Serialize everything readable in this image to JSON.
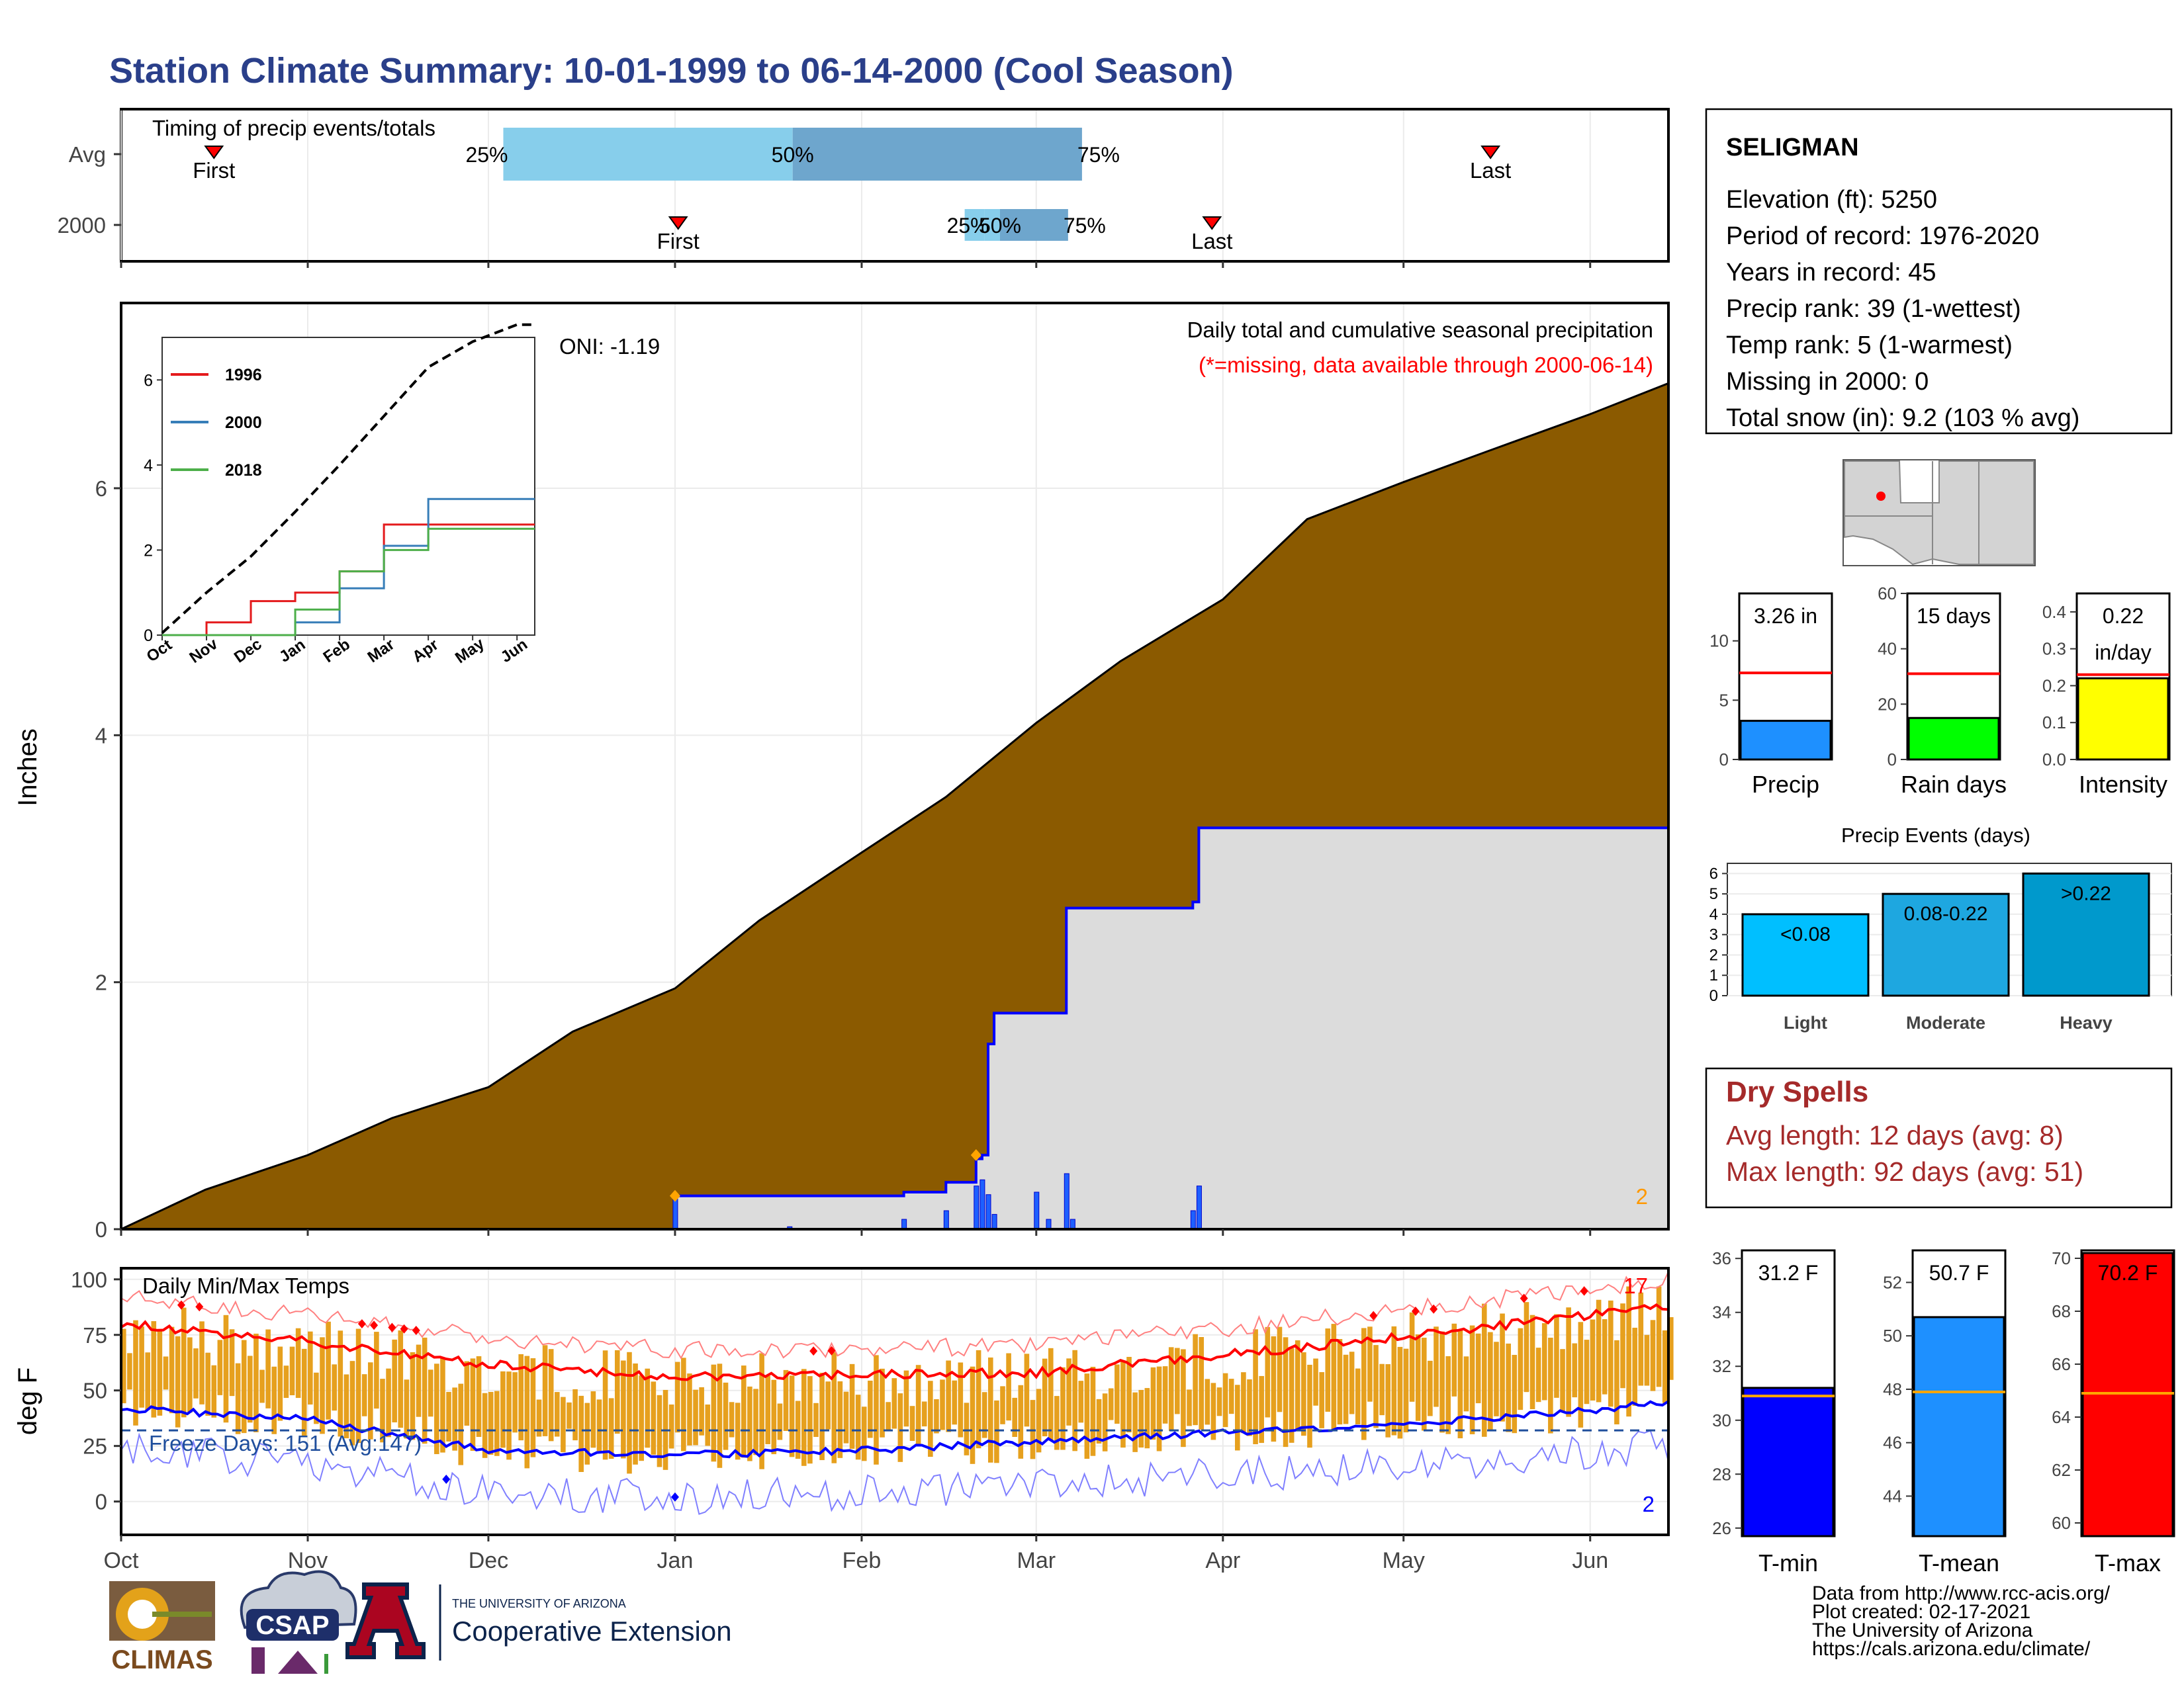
{
  "title": "Station Climate Summary: 10-01-1999 to 06-14-2000 (Cool Season)",
  "colors": {
    "title": "#2a3f8a",
    "cumulative_avg": "#8b5a00",
    "season_fill": "#dcdcdc",
    "season_line": "#0000ff",
    "band_light": "#87ceeb",
    "band_dark": "#6ea6cd",
    "tmax": "#ff0000",
    "tmin": "#0000ff",
    "bars": "#e6a01e",
    "dry_spells": "#a52a2a"
  },
  "months": [
    "Oct",
    "Nov",
    "Dec",
    "Jan",
    "Feb",
    "Mar",
    "Apr",
    "May",
    "Jun"
  ],
  "timing_panel": {
    "title": "Timing of precip events/totals",
    "rows": [
      {
        "label": "Avg",
        "first_label": "First",
        "last_label": "Last",
        "p25": "25%",
        "p50": "50%",
        "p75": "75%",
        "first": 0.06,
        "last": 0.885,
        "q25": 0.247,
        "q50": 0.434,
        "q75": 0.621
      },
      {
        "label": "2000",
        "first_label": "First",
        "last_label": "Last",
        "p25": "25%",
        "p50": "50%",
        "p75": "75%",
        "first": 0.36,
        "last": 0.705,
        "q25": 0.558,
        "q50": 0.568,
        "q75": 0.612
      }
    ]
  },
  "precip_panel": {
    "ylabel": "Inches",
    "oni": "ONI: -1.19",
    "caption": "Daily total and cumulative seasonal precipitation",
    "missing_note": "(*=missing, data available through 2000-06-14)",
    "count_label": "2",
    "yticks": [
      "0",
      "2",
      "4",
      "6"
    ]
  },
  "inset": {
    "yticks": [
      "0",
      "2",
      "4",
      "6"
    ],
    "months": [
      "Oct",
      "Nov",
      "Dec",
      "Jan",
      "Feb",
      "Mar",
      "Apr",
      "May",
      "Jun"
    ],
    "legend": [
      "1996",
      "2000",
      "2018"
    ],
    "legend_colors": [
      "#e41a1c",
      "#377eb8",
      "#4daf4a"
    ]
  },
  "temp_panel": {
    "ylabel": "deg F",
    "title": "Daily Min/Max Temps",
    "freeze": "Freeze Days: 151 (Avg:147)",
    "max_count": "17",
    "min_count": "2",
    "yticks": [
      "0",
      "25",
      "50",
      "75",
      "100"
    ]
  },
  "station_box": {
    "name": "SELIGMAN",
    "lines": [
      "Elevation (ft): 5250",
      "Period of record: 1976-2020",
      "Years in record: 45",
      "Precip rank: 39 (1-wettest)",
      "Temp rank: 5 (1-warmest)",
      "Missing in 2000: 0",
      "Total snow (in): 9.2 (103 % avg)"
    ]
  },
  "mini_bars": [
    {
      "label": "Precip",
      "value_text": "3.26 in",
      "value": 3.26,
      "avg": 7.3,
      "ymax": 14,
      "ticks": [
        "0",
        "5",
        "10"
      ],
      "tickvals": [
        0,
        5,
        10
      ],
      "color": "#1e90ff"
    },
    {
      "label": "Rain days",
      "value_text": "15 days",
      "value": 15,
      "avg": 31,
      "ymax": 60,
      "ticks": [
        "0",
        "20",
        "40",
        "60"
      ],
      "tickvals": [
        0,
        20,
        40,
        60
      ],
      "color": "#00ff00"
    },
    {
      "label": "Intensity",
      "value_text": "0.22",
      "value_text2": "in/day",
      "value": 0.22,
      "avg": 0.23,
      "ymax": 0.45,
      "ticks": [
        "0.0",
        "0.1",
        "0.2",
        "0.3",
        "0.4"
      ],
      "tickvals": [
        0,
        0.1,
        0.2,
        0.3,
        0.4
      ],
      "color": "#ffff00"
    }
  ],
  "events_panel": {
    "title": "Precip Events (days)",
    "bars": [
      {
        "label": "Light",
        "range": "<0.08",
        "value": 4,
        "color": "#00bfff"
      },
      {
        "label": "Moderate",
        "range": "0.08-0.22",
        "value": 5,
        "color": "#1ea7e0"
      },
      {
        "label": "Heavy",
        "range": ">0.22",
        "value": 6,
        "color": "#0099cc"
      }
    ],
    "ticks": [
      "0",
      "1",
      "2",
      "3",
      "4",
      "5",
      "6"
    ]
  },
  "dry_spells": {
    "title": "Dry Spells",
    "avg": "Avg length: 12 days (avg: 8)",
    "max": "Max length: 92 days (avg: 51)"
  },
  "temp_bars": [
    {
      "label": "T-min",
      "value_text": "31.2 F",
      "value": 31.2,
      "avg": 30.9,
      "ymin": 25.7,
      "ymax": 36.3,
      "ticks": [
        26,
        28,
        30,
        32,
        34,
        36
      ],
      "color": "#0000ff"
    },
    {
      "label": "T-mean",
      "value_text": "50.7 F",
      "value": 50.7,
      "avg": 47.9,
      "ymin": 42.5,
      "ymax": 53.2,
      "ticks": [
        44,
        46,
        48,
        50,
        52
      ],
      "color": "#1e90ff"
    },
    {
      "label": "T-max",
      "value_text": "70.2 F",
      "value": 70.2,
      "avg": 64.9,
      "ymin": 59.5,
      "ymax": 70.3,
      "ticks": [
        60,
        62,
        64,
        66,
        68,
        70
      ],
      "color": "#ff0000"
    }
  ],
  "footer": {
    "lines": [
      "Data from http://www.rcc-acis.org/",
      "Plot created: 02-17-2021",
      "The University of Arizona",
      "https://cals.arizona.edu/climate/"
    ],
    "climas": "CLIMAS",
    "csap": "CSAP",
    "ua_small": "THE UNIVERSITY OF ARIZONA",
    "ua_big": "Cooperative Extension"
  },
  "chart_data": [
    {
      "type": "area",
      "title": "Daily total and cumulative seasonal precipitation",
      "ylabel": "Inches",
      "ylim": [
        0,
        7.5
      ],
      "x_range": [
        "1999-10-01",
        "2000-06-14"
      ],
      "series": [
        {
          "name": "",
          "x": [
            "1999-10-01",
            "1999-10-15",
            "1999-11-01",
            "1999-11-15",
            "1999-12-01",
            "1999-12-15",
            "2000-01-01",
            "2000-01-15",
            "2000-02-01",
            "2000-02-15",
            "2000-03-01",
            "2000-03-15",
            "2000-04-01",
            "2000-04-15",
            "2000-05-01",
            "2000-05-15",
            "2000-06-01",
            "2000-06-14"
          ],
          "values": [
            0.0,
            0.32,
            0.6,
            0.9,
            1.15,
            1.6,
            1.95,
            2.5,
            3.05,
            3.5,
            4.1,
            4.6,
            5.1,
            5.75,
            6.05,
            6.3,
            6.6,
            6.85
          ]
        },
        {
          "name": "",
          "x": [
            "1999-10-01",
            "2000-01-01",
            "2000-01-20",
            "2000-02-08",
            "2000-02-15",
            "2000-02-20",
            "2000-02-21",
            "2000-02-22",
            "2000-02-23",
            "2000-03-03",
            "2000-03-06",
            "2000-03-27",
            "2000-03-28",
            "2000-06-14"
          ],
          "values": [
            0.0,
            0.27,
            0.27,
            0.3,
            0.38,
            0.57,
            0.6,
            1.5,
            1.75,
            1.75,
            2.6,
            2.65,
            3.25,
            3.26
          ]
        }
      ],
      "daily_precip": {
        "x": [
          "2000-01-01",
          "2000-01-20",
          "2000-02-08",
          "2000-02-15",
          "2000-02-20",
          "2000-02-21",
          "2000-02-22",
          "2000-02-23",
          "2000-03-01",
          "2000-03-03",
          "2000-03-06",
          "2000-03-07",
          "2000-03-27",
          "2000-03-28"
        ],
        "values": [
          0.27,
          0.02,
          0.08,
          0.15,
          0.35,
          0.4,
          0.28,
          0.12,
          0.3,
          0.08,
          0.45,
          0.08,
          0.15,
          0.35
        ]
      }
    },
    {
      "type": "line",
      "title": "",
      "ylim": [
        0,
        7
      ],
      "categories": [
        "Oct",
        "Nov",
        "Dec",
        "Jan",
        "Feb",
        "Mar",
        "Apr",
        "May",
        "Jun"
      ],
      "series": [
        {
          "name": "",
          "values": [
            0.05,
            1.0,
            1.85,
            2.9,
            4.0,
            5.15,
            6.3,
            6.9,
            7.3
          ]
        },
        {
          "name": "1996",
          "values": [
            0,
            0.3,
            0.8,
            1.0,
            1.5,
            2.6,
            2.6,
            2.6,
            2.6
          ]
        },
        {
          "name": "2000",
          "values": [
            0,
            0,
            0,
            0.3,
            1.1,
            2.1,
            3.2,
            3.2,
            3.2
          ]
        },
        {
          "name": "2018",
          "values": [
            0,
            0,
            0,
            0.6,
            1.5,
            2.0,
            2.5,
            2.5,
            2.5
          ]
        }
      ]
    },
    {
      "type": "line",
      "title": "Daily Min/Max Temps",
      "ylabel": "deg F",
      "ylim": [
        -15,
        105
      ],
      "x_range": [
        "1999-10-01",
        "2000-06-14"
      ],
      "freeze_threshold": 32,
      "series": [
        {
          "name": "",
          "x": [
            "Oct 1",
            "Nov 1",
            "Dec 1",
            "Jan 1",
            "Feb 1",
            "Mar 1",
            "Apr 1",
            "May 1",
            "Jun 1",
            "Jun 14"
          ],
          "values": [
            78,
            70,
            60,
            54,
            55,
            56,
            64,
            72,
            82,
            86
          ]
        },
        {
          "name": "",
          "x": [
            "Oct 1",
            "Nov 1",
            "Dec 1",
            "Jan 1",
            "Feb 1",
            "Mar 1",
            "Apr 1",
            "May 1",
            "Jun 1",
            "Jun 14"
          ],
          "values": [
            43,
            38,
            24,
            22,
            24,
            28,
            32,
            36,
            42,
            46
          ]
        }
      ]
    },
    {
      "type": "bar",
      "title": "Precip Events (days)",
      "categories": [
        "Light",
        "Moderate",
        "Heavy"
      ],
      "values": [
        4,
        5,
        6
      ],
      "ylim": [
        0,
        6.5
      ]
    }
  ]
}
